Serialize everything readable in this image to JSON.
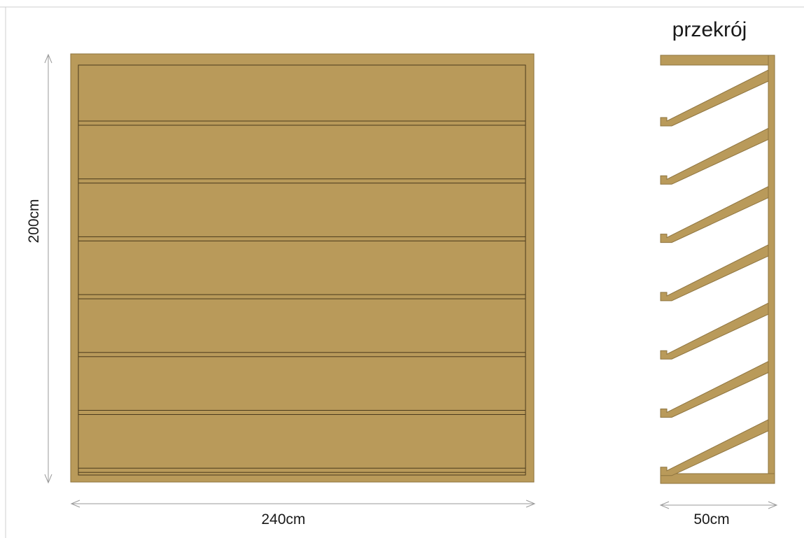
{
  "labels": {
    "height": "200cm",
    "width": "240cm",
    "depth": "50cm",
    "section_title": "przekrój"
  },
  "dimensions_cm": {
    "width": 240,
    "height": 200,
    "depth": 50
  },
  "front_view": {
    "shelf_count": 7
  },
  "section_view": {
    "shelf_count": 7
  },
  "colors": {
    "wood": "#b99a5a",
    "outline": "#4a3a1c",
    "dimension_line": "#9a9a9a",
    "border": "#cfcfcf"
  }
}
